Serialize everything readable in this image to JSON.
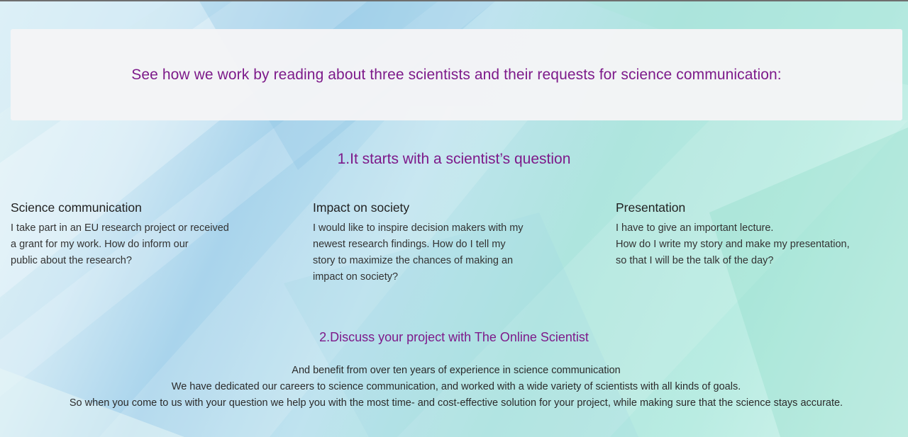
{
  "banner": {
    "text": "See how we work by reading about three scientists and their requests for science communication:"
  },
  "step1": {
    "title": "1.It starts with a scientist’s question"
  },
  "columns": [
    {
      "title": "Science communication",
      "lines": [
        "I take part in an EU research project or received",
        "a grant for my work. How do inform our",
        "public about the research?"
      ]
    },
    {
      "title": "Impact on society",
      "lines": [
        "I would like to inspire decision makers with my",
        "newest research findings. How do I tell my",
        "story to maximize the chances of making an",
        "impact on society?"
      ]
    },
    {
      "title": "Presentation",
      "lines": [
        "I have to give an important lecture.",
        "How do I write my story and make my presentation,",
        "so that I will be the talk of the day?"
      ]
    }
  ],
  "step2": {
    "title": "2.Discuss your project with The Online Scientist",
    "lines": [
      "And benefit from over ten years of experience in science communication",
      "We have dedicated our careers to science communication, and worked with a wide variety of scientists with all kinds of goals.",
      "So when you come to us with your question we help you with the most time- and cost-effective solution for your project, while making sure that the science stays accurate."
    ]
  },
  "colors": {
    "accent": "#7d1a8a",
    "banner_bg": "#f4f4f6",
    "text": "#2b2b2b"
  }
}
